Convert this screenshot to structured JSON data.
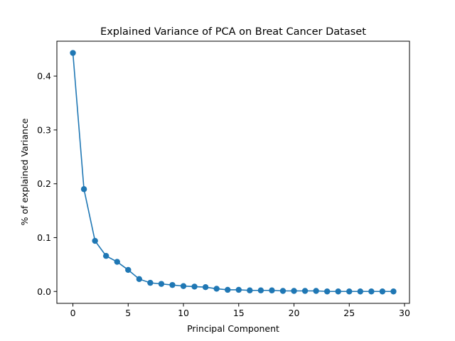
{
  "chart_data": {
    "type": "line",
    "title": "Explained Variance of PCA on Breat Cancer Dataset",
    "xlabel": "Principal Component",
    "ylabel": "% of explained Variance",
    "xlim": [
      -1.45,
      30.45
    ],
    "ylim": [
      -0.0221,
      0.4648
    ],
    "xticks": [
      0,
      5,
      10,
      15,
      20,
      25,
      30
    ],
    "xtick_labels": [
      "0",
      "5",
      "10",
      "15",
      "20",
      "25",
      "30"
    ],
    "yticks": [
      0.0,
      0.1,
      0.2,
      0.3,
      0.4
    ],
    "ytick_labels": [
      "0.0",
      "0.1",
      "0.2",
      "0.3",
      "0.4"
    ],
    "grid": false,
    "legend": "none",
    "series": [
      {
        "color": "#1f77b4",
        "marker": "circle",
        "x": [
          0,
          1,
          2,
          3,
          4,
          5,
          6,
          7,
          8,
          9,
          10,
          11,
          12,
          13,
          14,
          15,
          16,
          17,
          18,
          19,
          20,
          21,
          22,
          23,
          24,
          25,
          26,
          27,
          28,
          29
        ],
        "y": [
          0.443,
          0.19,
          0.094,
          0.066,
          0.055,
          0.04,
          0.023,
          0.016,
          0.014,
          0.012,
          0.01,
          0.009,
          0.008,
          0.005,
          0.003,
          0.003,
          0.002,
          0.002,
          0.002,
          0.001,
          0.001,
          0.001,
          0.001,
          0.0,
          0.0,
          0.0,
          0.0,
          0.0,
          0.0,
          0.0
        ]
      }
    ]
  }
}
